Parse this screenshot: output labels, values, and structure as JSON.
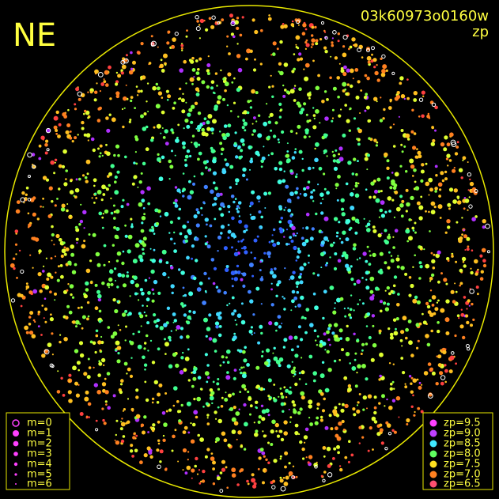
{
  "header": {
    "label": "NE",
    "id": "03k60973o0160w",
    "mode": "zp"
  },
  "legend_magnitude": [
    "m=0",
    "m=1",
    "m=2",
    "m=3",
    "m=4",
    "m=5",
    "m=6"
  ],
  "legend_zp": [
    "zp=9.5",
    "zp=9.0",
    "zp=8.5",
    "zp=8.0",
    "zp=7.5",
    "zp=7.0",
    "zp=6.5"
  ]
}
